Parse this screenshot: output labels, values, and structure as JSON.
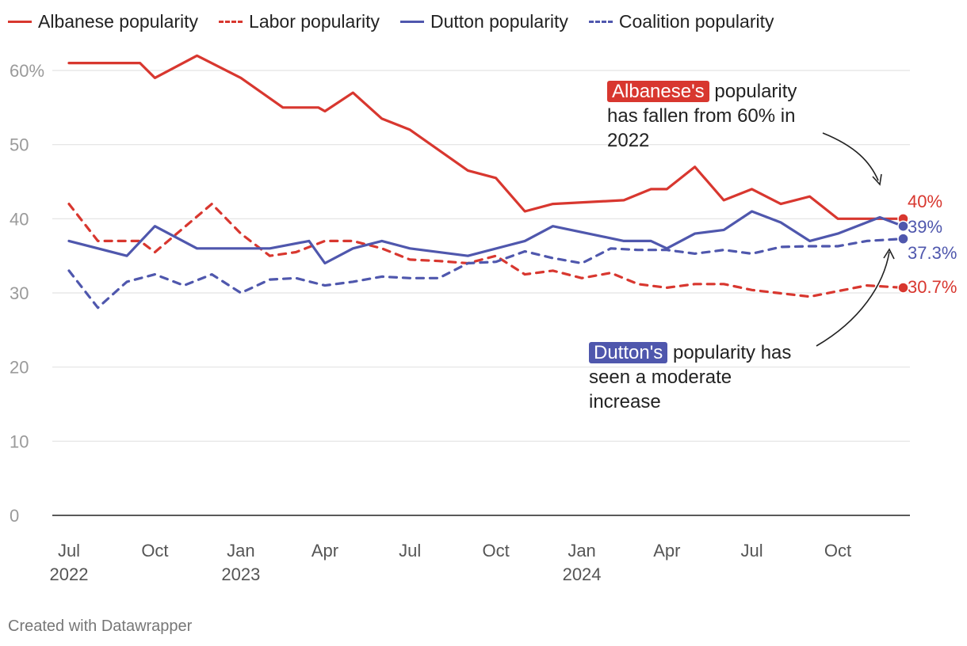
{
  "chart_data": {
    "type": "line",
    "title": "",
    "xlabel": "",
    "ylabel": "",
    "ylim": [
      0,
      65
    ],
    "yticks": [
      0,
      10,
      20,
      30,
      40,
      50,
      60
    ],
    "ytick_labels": [
      "0",
      "10",
      "20",
      "30",
      "40",
      "50",
      "60%"
    ],
    "xticks": [
      {
        "date": "2022-07",
        "label": "Jul",
        "year": "2022"
      },
      {
        "date": "2022-10",
        "label": "Oct",
        "year": ""
      },
      {
        "date": "2023-01",
        "label": "Jan",
        "year": "2023"
      },
      {
        "date": "2023-04",
        "label": "Apr",
        "year": ""
      },
      {
        "date": "2023-07",
        "label": "Jul",
        "year": ""
      },
      {
        "date": "2023-10",
        "label": "Oct",
        "year": ""
      },
      {
        "date": "2024-01",
        "label": "Jan",
        "year": "2024"
      },
      {
        "date": "2024-04",
        "label": "Apr",
        "year": ""
      },
      {
        "date": "2024-07",
        "label": "Jul",
        "year": ""
      },
      {
        "date": "2024-10",
        "label": "Oct",
        "year": ""
      }
    ],
    "grid": true,
    "legend": "top-left",
    "series": [
      {
        "name": "Albanese popularity",
        "color": "#d8372f",
        "dashed": false,
        "end_label": "40%",
        "points": [
          [
            "2022-07-01",
            61
          ],
          [
            "2022-08-01",
            61
          ],
          [
            "2022-09-15",
            61
          ],
          [
            "2022-10-01",
            59
          ],
          [
            "2022-11-15",
            62
          ],
          [
            "2023-01-01",
            59
          ],
          [
            "2023-02-15",
            55
          ],
          [
            "2023-03-25",
            55
          ],
          [
            "2023-04-01",
            54.5
          ],
          [
            "2023-05-01",
            57
          ],
          [
            "2023-06-01",
            53.5
          ],
          [
            "2023-07-01",
            52
          ],
          [
            "2023-09-01",
            46.5
          ],
          [
            "2023-10-01",
            45.5
          ],
          [
            "2023-11-01",
            41
          ],
          [
            "2023-12-01",
            42
          ],
          [
            "2024-02-15",
            42.5
          ],
          [
            "2024-03-15",
            44
          ],
          [
            "2024-04-01",
            44
          ],
          [
            "2024-05-01",
            47
          ],
          [
            "2024-06-01",
            42.5
          ],
          [
            "2024-07-01",
            44
          ],
          [
            "2024-08-01",
            42
          ],
          [
            "2024-09-01",
            43
          ],
          [
            "2024-10-01",
            40
          ],
          [
            "2024-12-10",
            40
          ]
        ]
      },
      {
        "name": "Labor popularity",
        "color": "#d8372f",
        "dashed": true,
        "end_label": "30.7%",
        "points": [
          [
            "2022-07-01",
            42
          ],
          [
            "2022-08-01",
            37
          ],
          [
            "2022-09-15",
            37
          ],
          [
            "2022-10-01",
            35.5
          ],
          [
            "2022-12-01",
            42
          ],
          [
            "2023-01-01",
            38
          ],
          [
            "2023-02-01",
            35
          ],
          [
            "2023-03-01",
            35.5
          ],
          [
            "2023-04-01",
            37
          ],
          [
            "2023-05-01",
            37
          ],
          [
            "2023-06-01",
            36
          ],
          [
            "2023-07-01",
            34.5
          ],
          [
            "2023-08-01",
            34.3
          ],
          [
            "2023-09-01",
            34
          ],
          [
            "2023-10-01",
            35
          ],
          [
            "2023-11-01",
            32.5
          ],
          [
            "2023-12-01",
            33
          ],
          [
            "2024-01-01",
            32
          ],
          [
            "2024-02-01",
            32.7
          ],
          [
            "2024-03-01",
            31.2
          ],
          [
            "2024-04-01",
            30.7
          ],
          [
            "2024-05-01",
            31.2
          ],
          [
            "2024-06-01",
            31.2
          ],
          [
            "2024-07-01",
            30.4
          ],
          [
            "2024-09-01",
            29.5
          ],
          [
            "2024-11-01",
            31
          ],
          [
            "2024-12-10",
            30.7
          ]
        ]
      },
      {
        "name": "Dutton popularity",
        "color": "#4f57ad",
        "dashed": false,
        "end_label": "39%",
        "points": [
          [
            "2022-07-01",
            37
          ],
          [
            "2022-09-01",
            35
          ],
          [
            "2022-10-01",
            39
          ],
          [
            "2022-11-15",
            36
          ],
          [
            "2023-01-01",
            36
          ],
          [
            "2023-02-01",
            36
          ],
          [
            "2023-03-15",
            37
          ],
          [
            "2023-04-01",
            34
          ],
          [
            "2023-05-01",
            36
          ],
          [
            "2023-06-01",
            37
          ],
          [
            "2023-07-01",
            36
          ],
          [
            "2023-09-01",
            35
          ],
          [
            "2023-11-01",
            37
          ],
          [
            "2023-12-01",
            39
          ],
          [
            "2024-02-15",
            37
          ],
          [
            "2024-03-15",
            37
          ],
          [
            "2024-04-01",
            36
          ],
          [
            "2024-05-01",
            38
          ],
          [
            "2024-06-01",
            38.5
          ],
          [
            "2024-07-01",
            41
          ],
          [
            "2024-08-01",
            39.5
          ],
          [
            "2024-09-01",
            37
          ],
          [
            "2024-10-01",
            38
          ],
          [
            "2024-11-15",
            40.2
          ],
          [
            "2024-12-10",
            39
          ]
        ]
      },
      {
        "name": "Coalition popularity",
        "color": "#4f57ad",
        "dashed": true,
        "end_label": "37.3%",
        "points": [
          [
            "2022-07-01",
            33
          ],
          [
            "2022-08-01",
            28
          ],
          [
            "2022-09-01",
            31.5
          ],
          [
            "2022-10-01",
            32.5
          ],
          [
            "2022-11-01",
            31
          ],
          [
            "2022-12-01",
            32.5
          ],
          [
            "2023-01-01",
            30
          ],
          [
            "2023-02-01",
            31.8
          ],
          [
            "2023-03-01",
            32
          ],
          [
            "2023-04-01",
            31
          ],
          [
            "2023-05-01",
            31.5
          ],
          [
            "2023-06-01",
            32.2
          ],
          [
            "2023-07-01",
            32
          ],
          [
            "2023-08-01",
            32
          ],
          [
            "2023-09-01",
            34
          ],
          [
            "2023-10-01",
            34.2
          ],
          [
            "2023-11-01",
            35.6
          ],
          [
            "2023-12-01",
            34.7
          ],
          [
            "2024-01-01",
            34
          ],
          [
            "2024-02-01",
            36
          ],
          [
            "2024-03-01",
            35.8
          ],
          [
            "2024-04-01",
            35.8
          ],
          [
            "2024-05-01",
            35.3
          ],
          [
            "2024-06-01",
            35.8
          ],
          [
            "2024-07-01",
            35.3
          ],
          [
            "2024-08-01",
            36.2
          ],
          [
            "2024-09-01",
            36.3
          ],
          [
            "2024-10-01",
            36.3
          ],
          [
            "2024-11-01",
            37
          ],
          [
            "2024-12-10",
            37.3
          ]
        ]
      }
    ],
    "annotations": [
      {
        "highlight": "Albanese's",
        "highlight_color": "#d8372f",
        "lines": [
          " popularity",
          "has fallen from 60% in",
          "2022"
        ]
      },
      {
        "highlight": "Dutton's",
        "highlight_color": "#4f57ad",
        "lines": [
          " popularity has",
          "seen a moderate",
          "increase"
        ]
      }
    ]
  },
  "footer": "Created with Datawrapper"
}
